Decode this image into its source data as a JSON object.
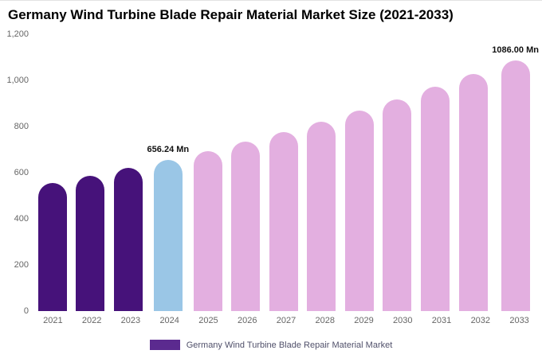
{
  "title": "Germany Wind Turbine Blade Repair Material Market Size (2021-2033)",
  "legend": {
    "label": "Germany Wind Turbine Blade Repair Material Market",
    "swatch_color": "#5b2a8f"
  },
  "colors": {
    "historical_bar": "#46127a",
    "current_year_bar": "#9ac6e6",
    "forecast_bar": "#e3afe0",
    "axis_text": "#666666",
    "annotation_text": "#111111"
  },
  "chart_data": {
    "type": "bar",
    "title": "Germany Wind Turbine Blade Repair Material Market Size (2021-2033)",
    "xlabel": "",
    "ylabel": "",
    "categories": [
      "2021",
      "2022",
      "2023",
      "2024",
      "2025",
      "2026",
      "2027",
      "2028",
      "2029",
      "2030",
      "2031",
      "2032",
      "2033"
    ],
    "values": [
      555,
      587,
      620,
      656.24,
      694,
      734,
      776,
      821,
      868,
      918,
      971,
      1027,
      1086
    ],
    "bar_colors": [
      "#46127a",
      "#46127a",
      "#46127a",
      "#9ac6e6",
      "#e3afe0",
      "#e3afe0",
      "#e3afe0",
      "#e3afe0",
      "#e3afe0",
      "#e3afe0",
      "#e3afe0",
      "#e3afe0",
      "#e3afe0"
    ],
    "ylim": [
      0,
      1200
    ],
    "yticks": [
      0,
      200,
      400,
      600,
      800,
      1000,
      1200
    ],
    "ytick_labels": [
      "0",
      "200",
      "400",
      "600",
      "800",
      "1,000",
      "1,200"
    ],
    "grid": false,
    "legend_position": "bottom",
    "annotations": [
      {
        "index": 3,
        "text": "656.24 Mn"
      },
      {
        "index": 12,
        "text": "1086.00 Mn"
      }
    ]
  }
}
